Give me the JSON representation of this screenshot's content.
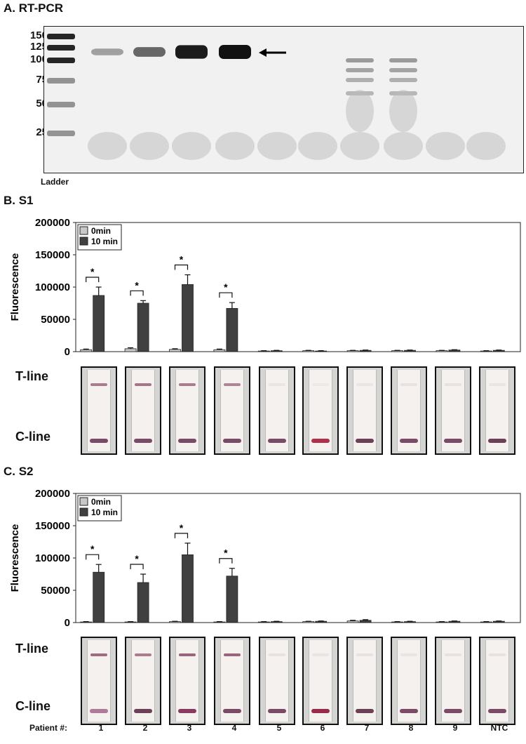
{
  "panels": {
    "a_title": "A. RT-PCR",
    "b_title": "B. S1",
    "c_title": "C. S2"
  },
  "gel": {
    "ladder_sizes": [
      "150",
      "125",
      "100",
      "75",
      "50",
      "25"
    ],
    "ladder_label": "Ladder",
    "band_intensity": [
      0,
      0.25,
      0.55,
      0.95,
      1.0,
      0,
      0,
      0.35,
      0.35,
      0,
      0
    ],
    "background_color": "#f1f1f1",
    "band_color": "#111111"
  },
  "strips": {
    "t_label": "T-line",
    "c_label": "C-line",
    "s1": {
      "t_intensity": [
        0.7,
        0.75,
        0.7,
        0.65,
        0.08,
        0.05,
        0.08,
        0.1,
        0.1,
        0.08
      ],
      "c_color": [
        "#7a4a66",
        "#7a4a66",
        "#7a4a66",
        "#7a4a66",
        "#7a4a66",
        "#b0304a",
        "#6e4058",
        "#7a4a66",
        "#7a4a66",
        "#6e4058"
      ]
    },
    "s2": {
      "t_intensity": [
        0.8,
        0.7,
        0.85,
        0.85,
        0.1,
        0.08,
        0.1,
        0.08,
        0.1,
        0.1
      ],
      "c_color": [
        "#b07a9a",
        "#6e4058",
        "#8a3a60",
        "#7a4a66",
        "#7a4a66",
        "#9a2a4a",
        "#6e4058",
        "#7a4a66",
        "#7a4a66",
        "#7a4a66"
      ]
    }
  },
  "patients": {
    "label": "Patient #:",
    "ids": [
      "1",
      "2",
      "3",
      "4",
      "5",
      "6",
      "7",
      "8",
      "9",
      "NTC"
    ]
  },
  "chart_data": [
    {
      "type": "bar",
      "panel": "B. S1",
      "title": "",
      "xlabel": "Patient #:",
      "ylabel": "Fluorescence",
      "ylim": [
        0,
        200000
      ],
      "yticks": [
        "0",
        "50000",
        "100000",
        "150000",
        "200000"
      ],
      "categories": [
        "1",
        "2",
        "3",
        "4",
        "5",
        "6",
        "7",
        "8",
        "9",
        "NTC"
      ],
      "legend": "top-left",
      "series": [
        {
          "name": "0min",
          "color": "#c8c8c8",
          "values": [
            3000,
            4500,
            3500,
            3000,
            1000,
            1500,
            1500,
            1500,
            1500,
            1000
          ],
          "errors": [
            1000,
            1500,
            1000,
            1000,
            500,
            500,
            500,
            500,
            500,
            500
          ]
        },
        {
          "name": "10 min",
          "color": "#404040",
          "values": [
            87000,
            75000,
            104000,
            67000,
            1500,
            1000,
            2000,
            2000,
            2500,
            2000
          ],
          "errors": [
            13000,
            4000,
            15000,
            9000,
            500,
            500,
            500,
            500,
            500,
            500
          ]
        }
      ],
      "significance": [
        "*",
        "*",
        "*",
        "*"
      ]
    },
    {
      "type": "bar",
      "panel": "C. S2",
      "title": "",
      "xlabel": "Patient #:",
      "ylabel": "Fluorescence",
      "ylim": [
        0,
        200000
      ],
      "yticks": [
        "0",
        "50000",
        "100000",
        "150000",
        "200000"
      ],
      "categories": [
        "1",
        "2",
        "3",
        "4",
        "5",
        "6",
        "7",
        "8",
        "9",
        "NTC"
      ],
      "legend": "top-left",
      "series": [
        {
          "name": "0min",
          "color": "#c8c8c8",
          "values": [
            1000,
            1000,
            1500,
            1000,
            1000,
            1500,
            2500,
            1000,
            1000,
            1000
          ],
          "errors": [
            500,
            500,
            500,
            500,
            500,
            500,
            1000,
            500,
            500,
            500
          ]
        },
        {
          "name": "10 min",
          "color": "#404040",
          "values": [
            78000,
            62000,
            105000,
            72000,
            1500,
            2000,
            3500,
            1500,
            2000,
            2000
          ],
          "errors": [
            12000,
            13000,
            18000,
            12000,
            500,
            500,
            1000,
            500,
            500,
            500
          ]
        }
      ],
      "significance": [
        "*",
        "*",
        "*",
        "*"
      ]
    }
  ]
}
